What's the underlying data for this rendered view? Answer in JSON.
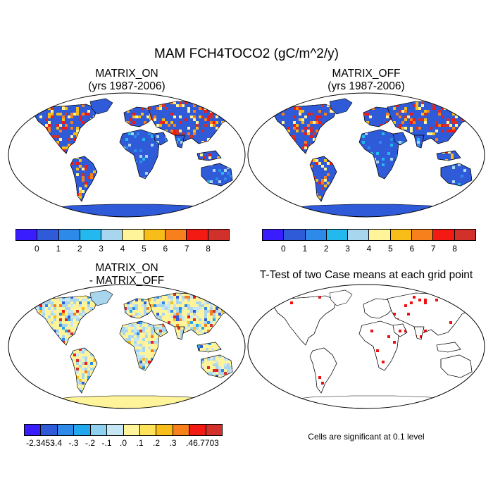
{
  "main_title": "MAM FCH4TOCO2 (gC/m^2/y)",
  "panels": {
    "top_left": {
      "title1": "MATRIX_ON",
      "title2": "(yrs 1987-2006)"
    },
    "top_right": {
      "title1": "MATRIX_OFF",
      "title2": "(yrs 1987-2006)"
    },
    "bottom_left": {
      "title1": "MATRIX_ON",
      "title2": "- MATRIX_OFF"
    },
    "bottom_right": {
      "title1": "T-Test of two Case means at each grid point",
      "note": "Cells are significant at 0.1 level"
    }
  },
  "colorbar_top": {
    "colors": [
      "#3a1dff",
      "#2f5ad8",
      "#2d8ae8",
      "#23b8ee",
      "#a8d6ee",
      "#fff49a",
      "#f9bd1a",
      "#f7801d",
      "#f21a12",
      "#d2302a"
    ],
    "labels": [
      "0",
      "1",
      "2",
      "3",
      "4",
      "5",
      "6",
      "7",
      "8"
    ]
  },
  "colorbar_diff": {
    "colors": [
      "#3a1dff",
      "#2f5ad8",
      "#2d8ae8",
      "#23a8ee",
      "#8fd0ee",
      "#c7e6f4",
      "#fff49a",
      "#fde35a",
      "#f9bd1a",
      "#f7801d",
      "#f21a12",
      "#d2302a"
    ],
    "labels": [
      "-2.3453",
      "-.4",
      "-.3",
      "-.2",
      "-.1",
      ".0",
      ".1",
      ".2",
      ".3",
      ".4",
      "6.7703"
    ]
  },
  "map_colors": {
    "ocean": "#ffffff",
    "land_top": "#2f5ad8",
    "land_diff": "#fff49a",
    "diff_alt": "#a8d6ee",
    "signif": "#ee1111"
  }
}
